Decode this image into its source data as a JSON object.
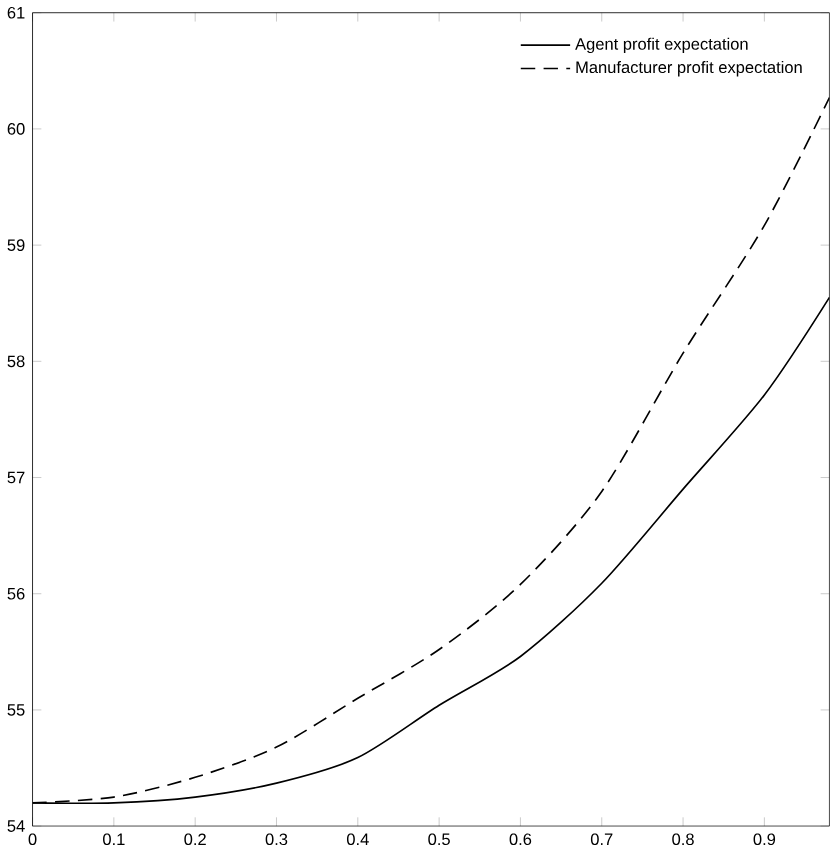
{
  "chart_data": {
    "type": "line",
    "x": [
      0,
      0.1,
      0.2,
      0.3,
      0.4,
      0.5,
      0.6,
      0.7,
      0.8,
      0.9,
      0.98
    ],
    "series": [
      {
        "name": "Agent profit expectation",
        "color": "#000000",
        "line_style": "solid",
        "values": [
          54.2,
          54.2,
          54.25,
          54.37,
          54.59,
          55.04,
          55.46,
          56.09,
          56.9,
          57.71,
          58.55
        ]
      },
      {
        "name": "Manufacturer profit expectation",
        "color": "#000000",
        "line_style": "dashed",
        "values": [
          54.2,
          54.25,
          54.42,
          54.68,
          55.1,
          55.52,
          56.08,
          56.88,
          58.07,
          59.17,
          60.27
        ]
      }
    ],
    "xlim": [
      0,
      0.98
    ],
    "ylim": [
      54,
      61
    ],
    "xticks": [
      0,
      0.1,
      0.2,
      0.3,
      0.4,
      0.5,
      0.6,
      0.7,
      0.8,
      0.9
    ],
    "yticks": [
      54,
      55,
      56,
      57,
      58,
      59,
      60,
      61
    ],
    "grid": false,
    "legend": "top right",
    "marker": "none"
  }
}
